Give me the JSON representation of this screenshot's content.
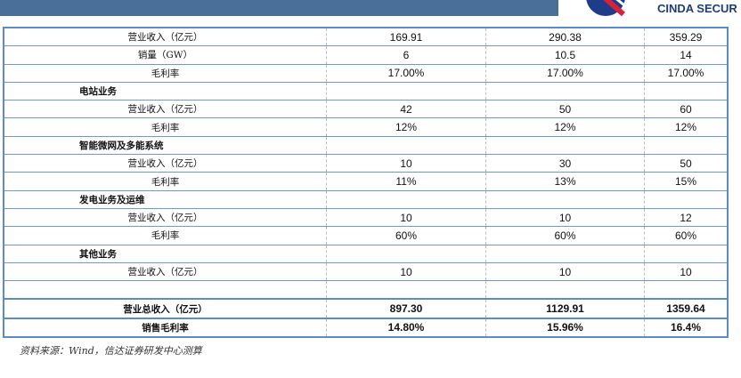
{
  "header": {
    "brand": "CINDA SECUR"
  },
  "table": {
    "rows": [
      {
        "label": "营业收入（亿元）",
        "values": [
          "169.91",
          "290.38",
          "359.29"
        ]
      },
      {
        "label": "销量（GW）",
        "values": [
          "6",
          "10.5",
          "14"
        ]
      },
      {
        "label": "毛利率",
        "values": [
          "17.00%",
          "17.00%",
          "17.00%"
        ]
      },
      {
        "label": "电站业务",
        "section": true,
        "values": [
          "",
          "",
          ""
        ]
      },
      {
        "label": "营业收入（亿元）",
        "values": [
          "42",
          "50",
          "60"
        ]
      },
      {
        "label": "毛利率",
        "values": [
          "12%",
          "12%",
          "12%"
        ]
      },
      {
        "label": "智能微网及多能系统",
        "section": true,
        "values": [
          "",
          "",
          ""
        ]
      },
      {
        "label": "营业收入（亿元）",
        "values": [
          "10",
          "30",
          "50"
        ]
      },
      {
        "label": "毛利率",
        "values": [
          "11%",
          "13%",
          "15%"
        ]
      },
      {
        "label": "发电业务及运维",
        "section": true,
        "values": [
          "",
          "",
          ""
        ]
      },
      {
        "label": "营业收入（亿元）",
        "values": [
          "10",
          "10",
          "12"
        ]
      },
      {
        "label": "毛利率",
        "values": [
          "60%",
          "60%",
          "60%"
        ]
      },
      {
        "label": "其他业务",
        "section": true,
        "values": [
          "",
          "",
          ""
        ]
      },
      {
        "label": "营业收入（亿元）",
        "values": [
          "10",
          "10",
          "10"
        ]
      },
      {
        "label": "",
        "values": [
          "",
          "",
          ""
        ]
      },
      {
        "label": "营业总收入（亿元）",
        "total": true,
        "values": [
          "897.30",
          "1129.91",
          "1359.64"
        ]
      },
      {
        "label": "销售毛利率",
        "total": true,
        "values": [
          "14.80%",
          "15.96%",
          "16.4%"
        ]
      }
    ]
  },
  "source": "资料来源：Wind，信达证券研发中心测算"
}
